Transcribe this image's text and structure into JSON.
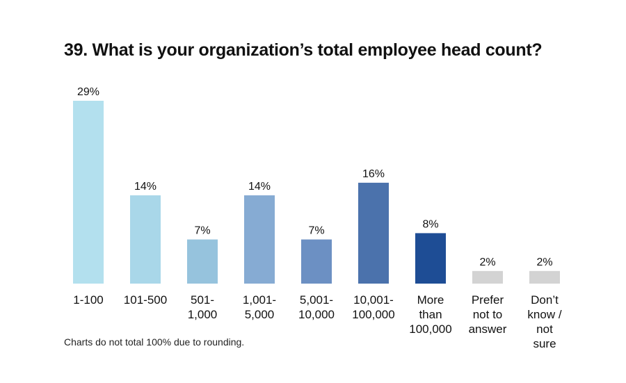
{
  "chart_data": {
    "type": "bar",
    "title": "39. What is your organization’s total employee head count?",
    "categories": [
      [
        "1-100"
      ],
      [
        "101-500"
      ],
      [
        "501-",
        "1,000"
      ],
      [
        "1,001-",
        "5,000"
      ],
      [
        "5,001-",
        "10,000"
      ],
      [
        "10,001-",
        "100,000"
      ],
      [
        "More",
        "than",
        "100,000"
      ],
      [
        "Prefer",
        "not to",
        "answer"
      ],
      [
        "Don’t",
        "know /",
        "not",
        "sure"
      ]
    ],
    "values": [
      29,
      14,
      7,
      14,
      7,
      16,
      8,
      2,
      2
    ],
    "value_labels": [
      "29%",
      "14%",
      "7%",
      "14%",
      "7%",
      "16%",
      "8%",
      "2%",
      "2%"
    ],
    "colors": [
      "#b3e0ee",
      "#a9d7e9",
      "#96c3dd",
      "#86abd3",
      "#6c90c3",
      "#4b72ac",
      "#1e4d95",
      "#d3d3d3",
      "#d3d3d3"
    ],
    "xlabel": "",
    "ylabel": "",
    "grid": false,
    "legend": "none",
    "footnote": "Charts do not total 100% due to rounding."
  }
}
